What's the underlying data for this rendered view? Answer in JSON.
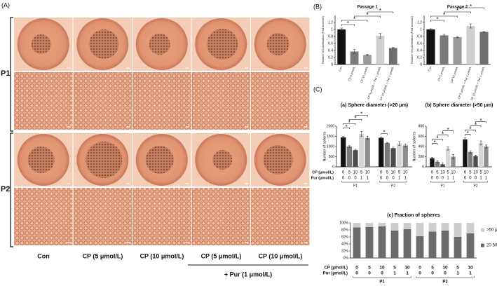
{
  "panel_labels": {
    "a": "(A)",
    "b": "(B)",
    "c": "(C)"
  },
  "images": {
    "rows": [
      "P1",
      "P2"
    ],
    "conditions": [
      "Con",
      "CP (5 μmol/L)",
      "CP (10 μmol/L)",
      "CP (5 μmol/L)",
      "CP (10 μmol/L)"
    ],
    "pur_label": "+ Pur (1 μmol/L)"
  },
  "chart_data": [
    {
      "type": "bar",
      "title": "Passage 1",
      "ylabel": "Relative cell proliferation (Fold increase)",
      "categories": [
        "Con",
        "CP 5 μmol/L",
        "CP 10 μmol/L",
        "CP 5 μmol/L + Pur 1 μmol/L",
        "CP 10 μmol/L + Pur 1 μmol/L"
      ],
      "values": [
        1.0,
        0.37,
        0.27,
        0.82,
        0.47
      ],
      "errors": [
        0.04,
        0.06,
        0.02,
        0.07,
        0.02
      ],
      "colors": [
        "#111111",
        "#7a7a7a",
        "#9a9a9a",
        "#cfcfcf",
        "#6e6e6e"
      ],
      "ylim": [
        0,
        1.4
      ],
      "yticks": [
        0,
        0.2,
        0.4,
        0.6,
        0.8,
        1,
        1.2
      ],
      "significance": [
        [
          0,
          1
        ],
        [
          0,
          2
        ],
        [
          1,
          3
        ],
        [
          2,
          4
        ]
      ],
      "sig_label": "*"
    },
    {
      "type": "bar",
      "title": "Passage 2",
      "ylabel": "Relative cell proliferation (Fold increase)",
      "categories": [
        "Con",
        "CP 5 μmol/L",
        "CP 10 μmol/L",
        "CP 5 μmol/L + Pur 1 μmol/L",
        "CP 10 μmol/L + Pur 1 μmol/L"
      ],
      "values": [
        1.0,
        0.83,
        0.78,
        1.1,
        0.93
      ],
      "errors": [
        0.02,
        0.03,
        0.02,
        0.06,
        0.02
      ],
      "colors": [
        "#111111",
        "#7a7a7a",
        "#9a9a9a",
        "#cfcfcf",
        "#6e6e6e"
      ],
      "ylim": [
        0,
        1.4
      ],
      "yticks": [
        0,
        0.2,
        0.4,
        0.6,
        0.8,
        1,
        1.2
      ],
      "significance": [
        [
          0,
          1
        ],
        [
          0,
          2
        ],
        [
          1,
          3
        ],
        [
          2,
          4
        ]
      ],
      "sig_label": "*"
    },
    {
      "type": "grouped_bar",
      "title": "(a) Sphere diameter (>20 μm)",
      "ylabel": "Number of spheres",
      "groups": [
        "P1",
        "P2"
      ],
      "series": [
        {
          "color": "#111111",
          "values": [
            1450,
            1430
          ],
          "errors": [
            50,
            40
          ]
        },
        {
          "color": "#7a7a7a",
          "values": [
            1000,
            1170
          ],
          "errors": [
            40,
            30
          ]
        },
        {
          "color": "#4d4d4d",
          "values": [
            820,
            920
          ],
          "errors": [
            40,
            50
          ]
        },
        {
          "color": "#d6d6d6",
          "values": [
            1620,
            1150
          ],
          "errors": [
            130,
            100
          ]
        },
        {
          "color": "#8c8c8c",
          "values": [
            1420,
            1050
          ],
          "errors": [
            90,
            70
          ]
        }
      ],
      "rows": [
        {
          "label": "CP (μmol/L)",
          "values": [
            0,
            5,
            10,
            5,
            10
          ]
        },
        {
          "label": "Pur (μmol/L)",
          "values": [
            0,
            0,
            0,
            1,
            1
          ]
        }
      ],
      "ylim": [
        0,
        2000
      ],
      "yticks": [
        0,
        500,
        1000,
        1500,
        2000
      ],
      "significance": [
        [
          0,
          0,
          1
        ],
        [
          0,
          0,
          2
        ],
        [
          0,
          1,
          3
        ],
        [
          0,
          2,
          4
        ],
        [
          1,
          0,
          1
        ]
      ],
      "sig_label": "*"
    },
    {
      "type": "grouped_bar",
      "title": "(b) Sphere diameter (>50 μm)",
      "ylabel": "Number of spheres",
      "groups": [
        "P1",
        "P2"
      ],
      "series": [
        {
          "color": "#111111",
          "values": [
            170,
            540
          ],
          "errors": [
            15,
            30
          ]
        },
        {
          "color": "#7a7a7a",
          "values": [
            100,
            290
          ],
          "errors": [
            20,
            25
          ]
        },
        {
          "color": "#4d4d4d",
          "values": [
            50,
            210
          ],
          "errors": [
            30,
            20
          ]
        },
        {
          "color": "#d6d6d6",
          "values": [
            360,
            470
          ],
          "errors": [
            30,
            40
          ]
        },
        {
          "color": "#8c8c8c",
          "values": [
            200,
            400
          ],
          "errors": [
            40,
            30
          ]
        }
      ],
      "rows": [
        {
          "values": [
            0,
            5,
            10,
            5,
            10
          ]
        },
        {
          "values": [
            0,
            0,
            0,
            1,
            1
          ]
        }
      ],
      "ylim": [
        0,
        800
      ],
      "yticks": [
        0,
        200,
        400,
        600,
        800
      ],
      "significance": [
        [
          0,
          0,
          1
        ],
        [
          0,
          0,
          2
        ],
        [
          0,
          1,
          3
        ],
        [
          0,
          2,
          4
        ],
        [
          1,
          0,
          1
        ],
        [
          1,
          0,
          2
        ],
        [
          1,
          1,
          3
        ],
        [
          1,
          2,
          4
        ]
      ],
      "sig_label": "*"
    },
    {
      "type": "stacked_bar",
      "title": "(c) Fraction of spheres",
      "groups": [
        "P1",
        "P2"
      ],
      "series": [
        {
          "name": "20-50 μm",
          "color": "#6b6b6b",
          "values": [
            87,
            88,
            90,
            78,
            82,
            62,
            75,
            78,
            60,
            70
          ]
        },
        {
          "name": ">50 μm",
          "color": "#cdcdcd",
          "values": [
            13,
            12,
            10,
            22,
            18,
            38,
            25,
            22,
            40,
            30
          ]
        }
      ],
      "rows": [
        {
          "label": "CP (μmol/L)",
          "values": [
            0,
            5,
            10,
            5,
            10,
            0,
            5,
            10,
            5,
            10
          ]
        },
        {
          "label": "Pur (μmol/L)",
          "values": [
            0,
            0,
            0,
            1,
            1,
            0,
            0,
            0,
            1,
            1
          ]
        }
      ],
      "ylim": [
        0,
        100
      ],
      "yticks": [
        {
          "value": 0,
          "label": "0%"
        },
        {
          "value": 20,
          "label": "20%"
        },
        {
          "value": 40,
          "label": "40%"
        },
        {
          "value": 60,
          "label": "60%"
        },
        {
          "value": 80,
          "label": "80%"
        },
        {
          "value": 100,
          "label": "100%"
        }
      ]
    }
  ]
}
